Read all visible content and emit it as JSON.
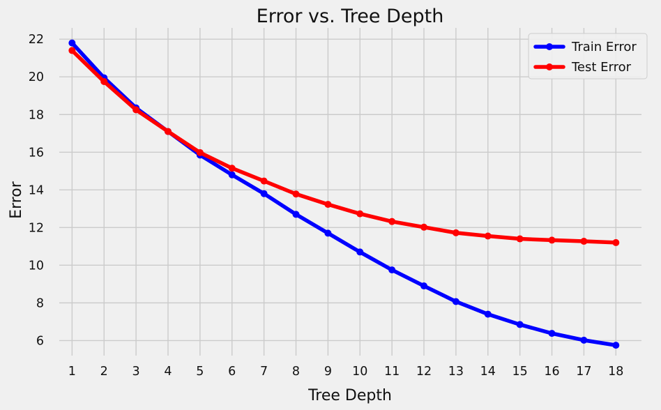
{
  "chart_data": {
    "type": "line",
    "title": "Error vs. Tree Depth",
    "xlabel": "Tree Depth",
    "ylabel": "Error",
    "x": [
      1,
      2,
      3,
      4,
      5,
      6,
      7,
      8,
      9,
      10,
      11,
      12,
      13,
      14,
      15,
      16,
      17,
      18
    ],
    "xlim": [
      0.6,
      18.8
    ],
    "ylim": [
      5.2,
      22.6
    ],
    "yticks": [
      6,
      8,
      10,
      12,
      14,
      16,
      18,
      20,
      22
    ],
    "grid": true,
    "legend_position": "top-right",
    "series": [
      {
        "name": "Train Error",
        "color": "#0000ff",
        "values": [
          21.8,
          19.95,
          18.35,
          17.1,
          15.85,
          14.8,
          13.8,
          12.7,
          11.7,
          10.7,
          9.75,
          8.9,
          8.07,
          7.4,
          6.85,
          6.38,
          6.02,
          5.75
        ]
      },
      {
        "name": "Test Error",
        "color": "#ff0000",
        "values": [
          21.4,
          19.75,
          18.25,
          17.1,
          15.98,
          15.15,
          14.47,
          13.78,
          13.23,
          12.73,
          12.32,
          12.02,
          11.72,
          11.55,
          11.4,
          11.33,
          11.27,
          11.2
        ]
      }
    ]
  }
}
